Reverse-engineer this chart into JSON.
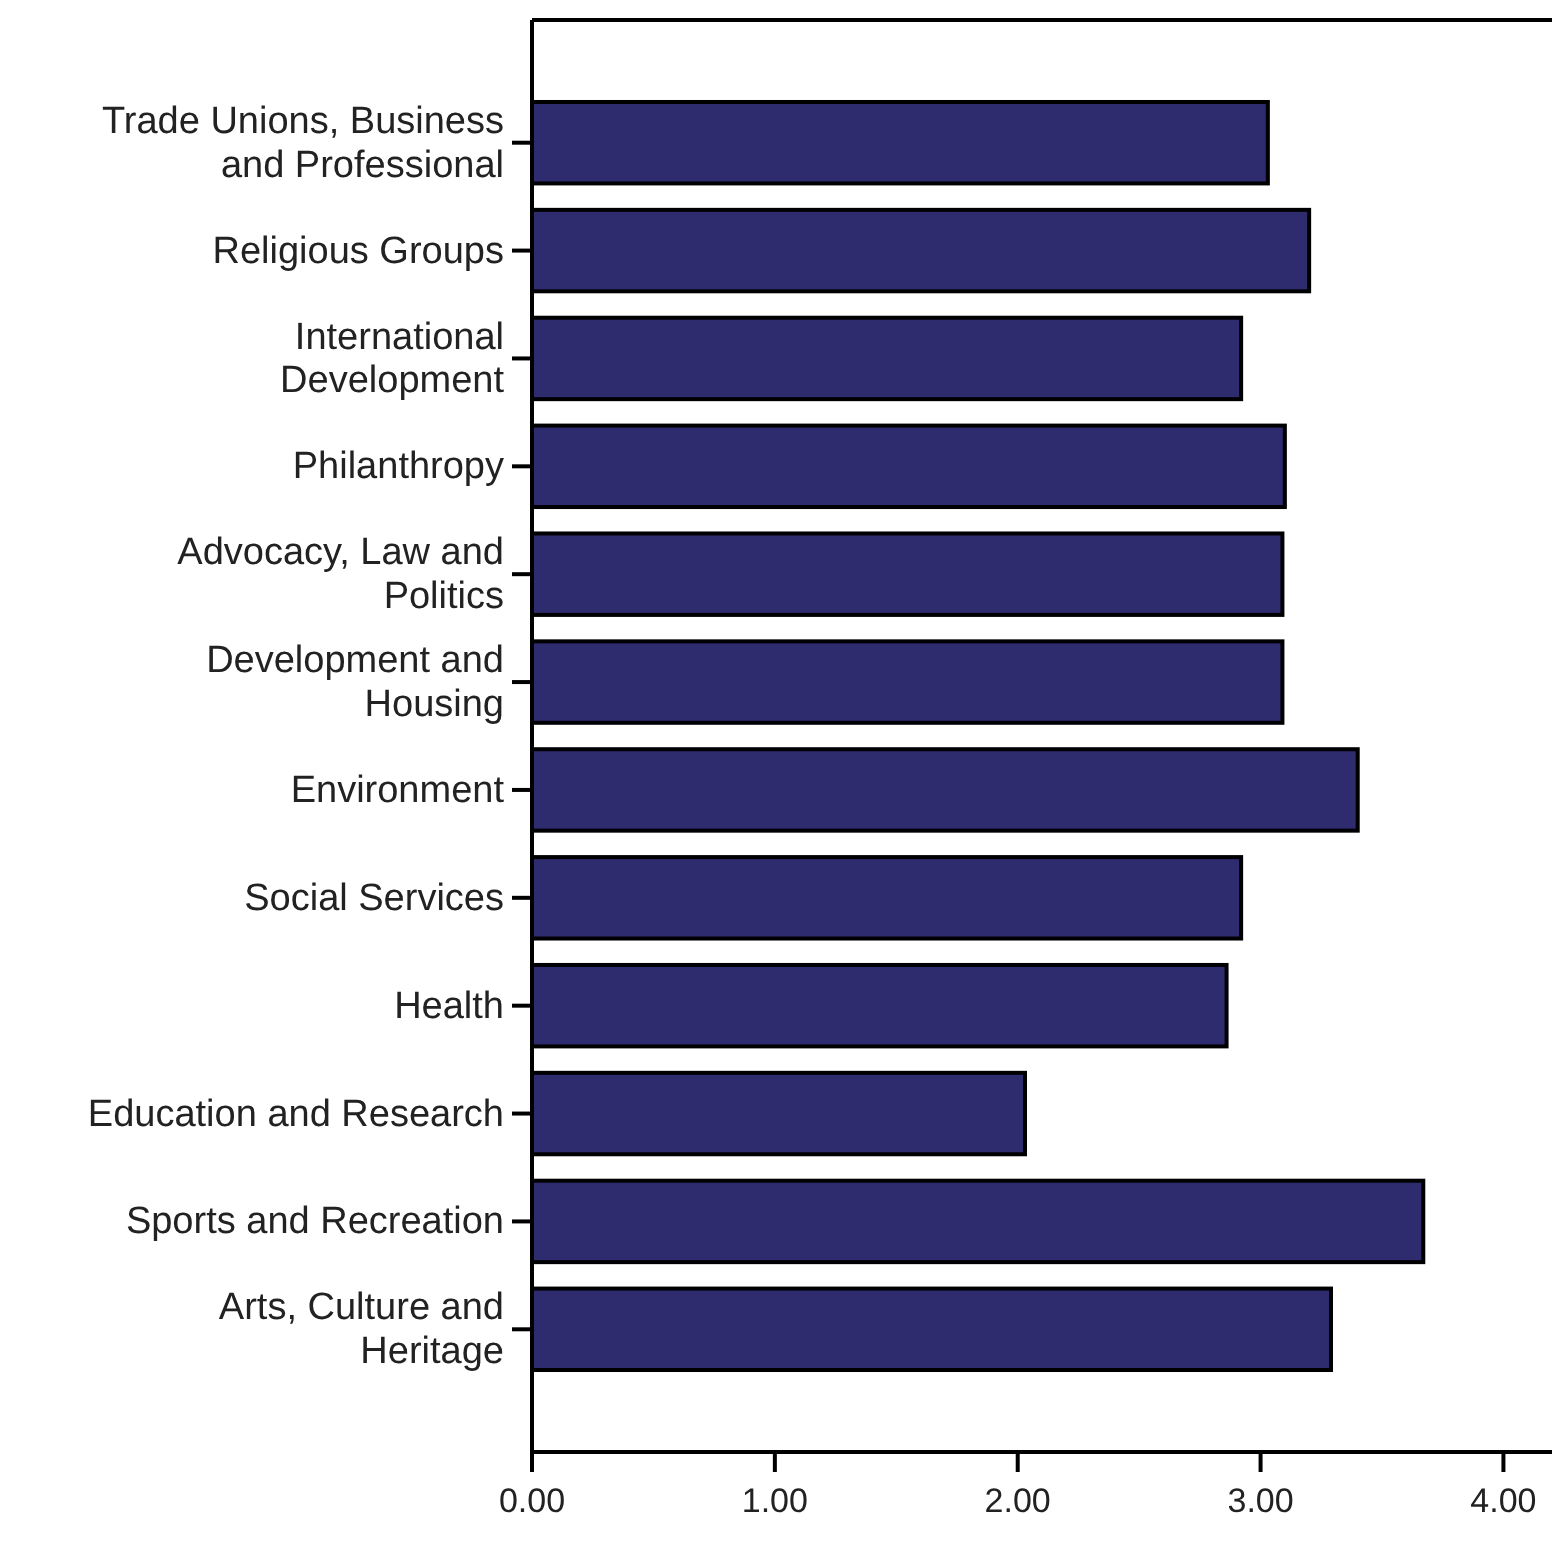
{
  "chart_data": {
    "type": "bar",
    "orientation": "horizontal",
    "categories": [
      "Trade Unions, Business and Professional",
      "Religious Groups",
      "International Development",
      "Philanthropy",
      "Advocacy, Law and Politics",
      "Development and Housing",
      "Environment",
      "Social Services",
      "Health",
      "Education and Research",
      "Sports and Recreation",
      "Arts, Culture and Heritage"
    ],
    "values": [
      3.03,
      3.2,
      2.92,
      3.1,
      3.09,
      3.09,
      3.4,
      2.92,
      2.86,
      2.03,
      3.67,
      3.29
    ],
    "color": "#2e2b6e",
    "xlim": [
      0,
      4.2
    ],
    "xticks": [
      {
        "value": 0,
        "label": "0.00"
      },
      {
        "value": 1,
        "label": "1.00"
      },
      {
        "value": 2,
        "label": "2.00"
      },
      {
        "value": 3,
        "label": "3.00"
      },
      {
        "value": 4,
        "label": "4.00"
      }
    ],
    "grid": false
  }
}
